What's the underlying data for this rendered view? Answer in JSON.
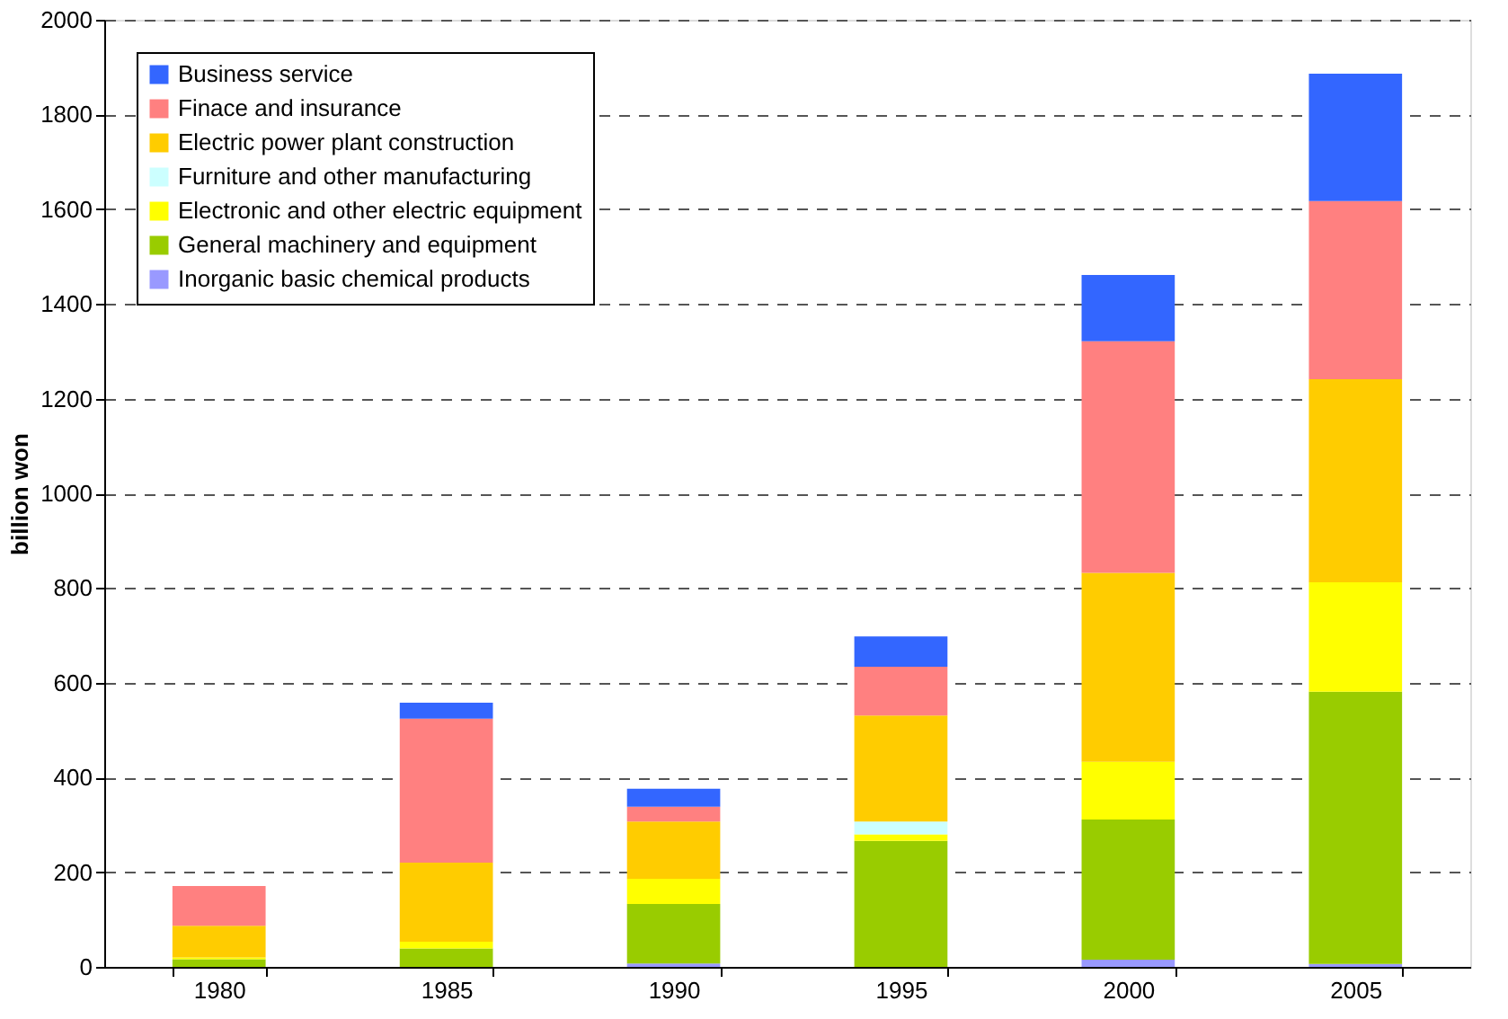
{
  "chart_data": {
    "type": "bar",
    "stacked": true,
    "ylabel": "billion won",
    "categories": [
      "1980",
      "1985",
      "1990",
      "1995",
      "2000",
      "2005"
    ],
    "series": [
      {
        "name": "Inorganic basic chemical products",
        "color": "#9999ff",
        "values": [
          0,
          0,
          7,
          0,
          15,
          6
        ]
      },
      {
        "name": "General machinery and equipment",
        "color": "#99cc00",
        "values": [
          16,
          39,
          126,
          266,
          296,
          575
        ]
      },
      {
        "name": "Electronic and other electric equipment",
        "color": "#ffff00",
        "values": [
          4,
          14,
          53,
          14,
          122,
          231
        ]
      },
      {
        "name": "Furniture and other manufacturing",
        "color": "#ccffff",
        "values": [
          0,
          0,
          0,
          27,
          0,
          0
        ]
      },
      {
        "name": "Electric power plant construction",
        "color": "#ffcc00",
        "values": [
          67,
          167,
          121,
          224,
          399,
          429
        ]
      },
      {
        "name": "Finace and insurance",
        "color": "#ff8080",
        "values": [
          84,
          304,
          31,
          103,
          489,
          376
        ]
      },
      {
        "name": "Business service",
        "color": "#3366ff",
        "values": [
          0,
          34,
          38,
          64,
          140,
          269
        ]
      }
    ],
    "ylim": [
      0,
      2000
    ],
    "yticks": [
      0,
      200,
      400,
      600,
      800,
      1000,
      1200,
      1400,
      1600,
      1800,
      2000
    ],
    "grid": "y",
    "legend": "top left"
  }
}
